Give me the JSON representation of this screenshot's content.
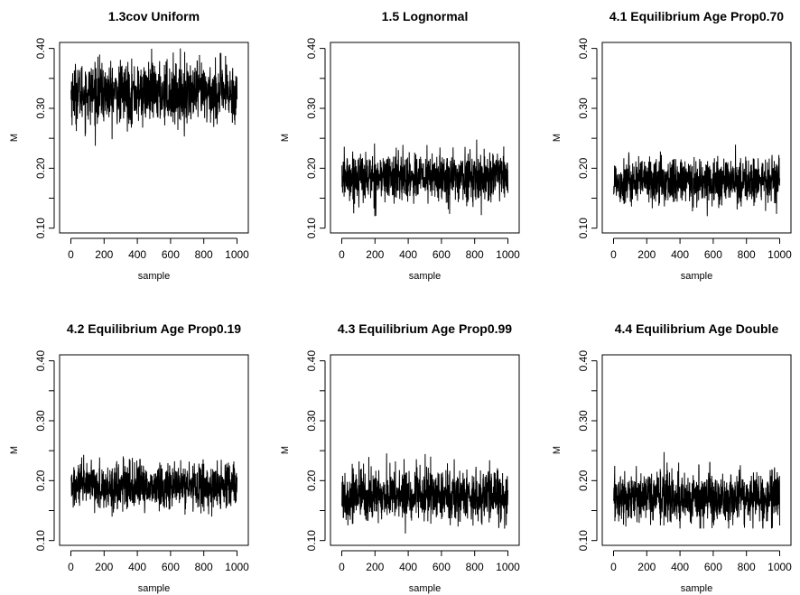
{
  "colors": {
    "background": "#ffffff",
    "ink": "#000000"
  },
  "chart_data": [
    {
      "type": "line",
      "title": "1.3cov Uniform",
      "xlabel": "sample",
      "ylabel": "M",
      "xlim": [
        0,
        1000
      ],
      "ylim": [
        0.1,
        0.4
      ],
      "xticks": [
        0,
        200,
        400,
        600,
        800,
        1000
      ],
      "yticks": [
        0.1,
        0.2,
        0.3,
        0.4
      ],
      "xtick_labels": [
        "0",
        "200",
        "400",
        "600",
        "800",
        "1000"
      ],
      "ytick_labels": [
        "0.10",
        "0.20",
        "0.30",
        "0.40"
      ],
      "n_samples": 1000,
      "trace": {
        "mean": 0.325,
        "sd": 0.025,
        "min": 0.21,
        "max": 0.41
      }
    },
    {
      "type": "line",
      "title": "1.5 Lognormal",
      "xlabel": "sample",
      "ylabel": "M",
      "xlim": [
        0,
        1000
      ],
      "ylim": [
        0.1,
        0.4
      ],
      "xticks": [
        0,
        200,
        400,
        600,
        800,
        1000
      ],
      "yticks": [
        0.1,
        0.2,
        0.3,
        0.4
      ],
      "xtick_labels": [
        "0",
        "200",
        "400",
        "600",
        "800",
        "1000"
      ],
      "ytick_labels": [
        "0.10",
        "0.20",
        "0.30",
        "0.40"
      ],
      "n_samples": 1000,
      "trace": {
        "mean": 0.185,
        "sd": 0.02,
        "min": 0.12,
        "max": 0.26
      }
    },
    {
      "type": "line",
      "title": "4.1 Equilibrium Age Prop0.70",
      "xlabel": "sample",
      "ylabel": "M",
      "xlim": [
        0,
        1000
      ],
      "ylim": [
        0.1,
        0.4
      ],
      "xticks": [
        0,
        200,
        400,
        600,
        800,
        1000
      ],
      "yticks": [
        0.1,
        0.2,
        0.3,
        0.4
      ],
      "xtick_labels": [
        "0",
        "200",
        "400",
        "600",
        "800",
        "1000"
      ],
      "ytick_labels": [
        "0.10",
        "0.20",
        "0.30",
        "0.40"
      ],
      "n_samples": 1000,
      "trace": {
        "mean": 0.178,
        "sd": 0.019,
        "min": 0.12,
        "max": 0.25
      }
    },
    {
      "type": "line",
      "title": "4.2 Equilibrium Age Prop0.19",
      "xlabel": "sample",
      "ylabel": "M",
      "xlim": [
        0,
        1000
      ],
      "ylim": [
        0.1,
        0.4
      ],
      "xticks": [
        0,
        200,
        400,
        600,
        800,
        1000
      ],
      "yticks": [
        0.1,
        0.2,
        0.3,
        0.4
      ],
      "xtick_labels": [
        "0",
        "200",
        "400",
        "600",
        "800",
        "1000"
      ],
      "ytick_labels": [
        "0.10",
        "0.20",
        "0.30",
        "0.40"
      ],
      "n_samples": 1000,
      "trace": {
        "mean": 0.19,
        "sd": 0.019,
        "min": 0.14,
        "max": 0.255
      }
    },
    {
      "type": "line",
      "title": "4.3 Equilibrium Age Prop0.99",
      "xlabel": "sample",
      "ylabel": "M",
      "xlim": [
        0,
        1000
      ],
      "ylim": [
        0.1,
        0.4
      ],
      "xticks": [
        0,
        200,
        400,
        600,
        800,
        1000
      ],
      "yticks": [
        0.1,
        0.2,
        0.3,
        0.4
      ],
      "xtick_labels": [
        "0",
        "200",
        "400",
        "600",
        "800",
        "1000"
      ],
      "ytick_labels": [
        "0.10",
        "0.20",
        "0.30",
        "0.40"
      ],
      "n_samples": 1000,
      "trace": {
        "mean": 0.175,
        "sd": 0.022,
        "min": 0.11,
        "max": 0.265
      }
    },
    {
      "type": "line",
      "title": "4.4 Equilibrium Age Double",
      "xlabel": "sample",
      "ylabel": "M",
      "xlim": [
        0,
        1000
      ],
      "ylim": [
        0.1,
        0.4
      ],
      "xticks": [
        0,
        200,
        400,
        600,
        800,
        1000
      ],
      "yticks": [
        0.1,
        0.2,
        0.3,
        0.4
      ],
      "xtick_labels": [
        "0",
        "200",
        "400",
        "600",
        "800",
        "1000"
      ],
      "ytick_labels": [
        "0.10",
        "0.20",
        "0.30",
        "0.40"
      ],
      "n_samples": 1000,
      "trace": {
        "mean": 0.172,
        "sd": 0.021,
        "min": 0.12,
        "max": 0.25
      }
    }
  ]
}
